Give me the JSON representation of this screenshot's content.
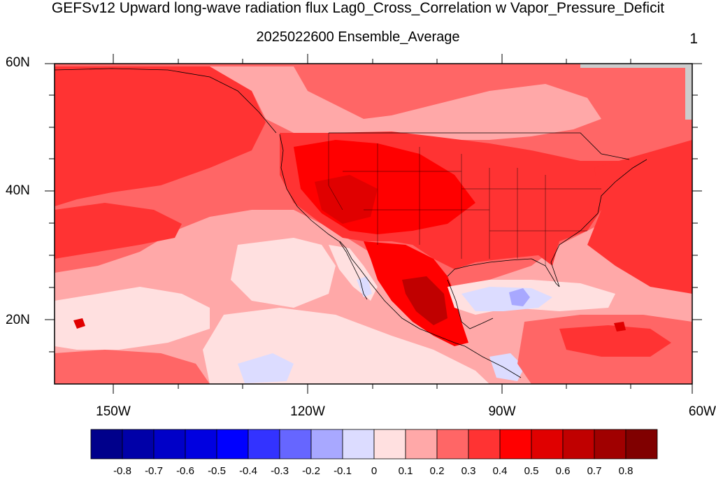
{
  "figure": {
    "title": "GEFSv12 Upward long-wave radiation flux Lag0_Cross_Correlation w Vapor_Pressure_Deficit",
    "subtitle": "2025022600 Ensemble_Average",
    "panel_number": "1"
  },
  "axes": {
    "lat_labels": [
      "60N",
      "40N",
      "20N"
    ],
    "lon_labels": [
      "150W",
      "120W",
      "90W",
      "60W"
    ]
  },
  "colorbar": {
    "colors": [
      "#00008b",
      "#0000a8",
      "#0000c8",
      "#0000e0",
      "#0000ff",
      "#3333ff",
      "#6666ff",
      "#a8a8ff",
      "#dcdcff",
      "#ffe0e0",
      "#ffa8a8",
      "#ff6666",
      "#ff3333",
      "#ff0000",
      "#e00000",
      "#c00000",
      "#a00000",
      "#800000"
    ],
    "labels": [
      "-0.8",
      "-0.7",
      "-0.6",
      "-0.5",
      "-0.4",
      "-0.3",
      "-0.2",
      "-0.1",
      "0",
      "0.1",
      "0.2",
      "0.3",
      "0.4",
      "0.5",
      "0.6",
      "0.7",
      "0.8"
    ]
  },
  "map_colors": {
    "c_neg01": "#dcdcff",
    "c_neg02": "#a8a8ff",
    "c_00": "#ffe0e0",
    "c_01": "#ffa8a8",
    "c_02": "#ff6666",
    "c_03": "#ff3333",
    "c_04": "#ff0000",
    "c_05": "#e00000",
    "c_06": "#c00000",
    "c_missing": "#cccccc"
  }
}
